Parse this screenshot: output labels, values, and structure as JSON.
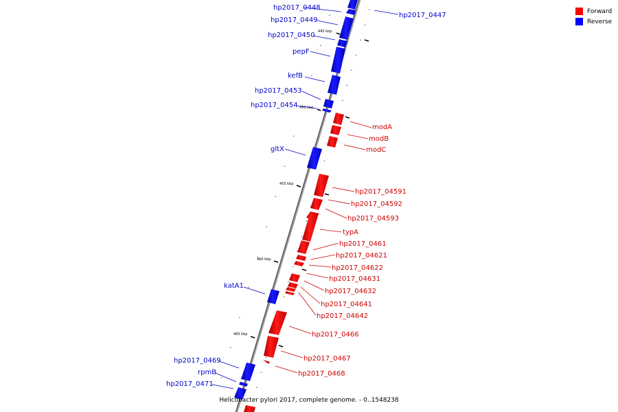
{
  "legend": {
    "forward_label": "Forward",
    "reverse_label": "Reverse",
    "forward_color": "#ff0000",
    "reverse_color": "#0000ff"
  },
  "caption": "Helicobacter pylori 2017, complete genome. - 0..1548238",
  "ticks": [
    "445 kbp",
    "450 kbp",
    "455 kbp",
    "460 kbp",
    "465 kbp"
  ],
  "genes": {
    "reverse": [
      "hp2017_0448",
      "hp2017_0447",
      "hp2017_0449",
      "hp2017_0450",
      "pepF",
      "kefB",
      "hp2017_0453",
      "hp2017_0454",
      "gltX",
      "katA1",
      "hp2017_0469",
      "rpmB",
      "hp2017_0471"
    ],
    "forward": [
      "modA",
      "modB",
      "modC",
      "hp2017_04591",
      "hp2017_04592",
      "hp2017_04593",
      "typA",
      "hp2017_0461",
      "hp2017_04621",
      "hp2017_04622",
      "hp2017_04631",
      "hp2017_04632",
      "hp2017_04641",
      "hp2017_04642",
      "hp2017_0466",
      "hp2017_0467",
      "hp2017_0468"
    ]
  }
}
